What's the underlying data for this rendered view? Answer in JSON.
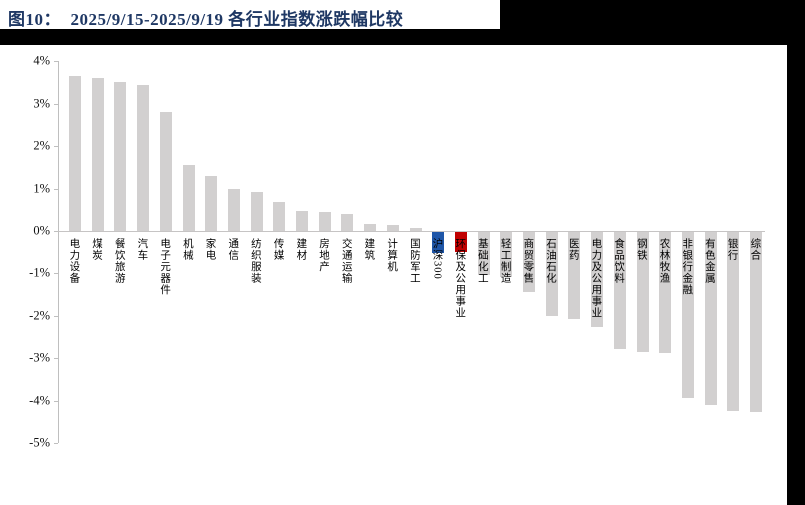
{
  "header": {
    "title": "图10：  2025/9/15-2025/9/19 各行业指数涨跌幅比较",
    "title_color": "#1F3864"
  },
  "chart_data": {
    "type": "bar",
    "title": "2025/9/15-2025/9/19 各行业指数涨跌幅比较",
    "xlabel": "",
    "ylabel": "",
    "y_unit": "%",
    "ylim": [
      -5,
      4
    ],
    "y_ticks": [
      "4%",
      "3%",
      "2%",
      "1%",
      "0%",
      "-1%",
      "-2%",
      "-3%",
      "-4%",
      "-5%"
    ],
    "grid": "none",
    "legend": "none",
    "categories": [
      "电力设备",
      "煤炭",
      "餐饮旅游",
      "汽车",
      "电子元器件",
      "机械",
      "家电",
      "通信",
      "纺织服装",
      "传媒",
      "建材",
      "房地产",
      "交通运输",
      "建筑",
      "计算机",
      "国防军工",
      "沪深300",
      "环保及公用事业",
      "基础化工",
      "轻工制造",
      "商贸零售",
      "石油石化",
      "医药",
      "电力及公用事业",
      "食品饮料",
      "钢铁",
      "农林牧渔",
      "非银行金融",
      "有色金属",
      "银行",
      "综合"
    ],
    "values": [
      3.65,
      3.6,
      3.52,
      3.45,
      2.8,
      1.55,
      1.3,
      1.0,
      0.92,
      0.68,
      0.48,
      0.44,
      0.4,
      0.17,
      0.14,
      0.06,
      -0.5,
      -0.48,
      -1.02,
      -1.07,
      -1.42,
      -1.97,
      -2.05,
      -2.25,
      -2.76,
      -2.84,
      -2.86,
      -3.92,
      -4.08,
      -4.22,
      -4.24
    ],
    "bar_default_color": "#D2D0D0",
    "highlighted_bars": [
      {
        "index": 16,
        "category": "沪深300",
        "color": "#1F56A8"
      },
      {
        "index": 17,
        "category": "环保及公用事业",
        "color": "#C00000"
      }
    ]
  },
  "decor": {
    "band_color": "#000000",
    "axis_color": "#BFBFBF",
    "zero_line_color": "#C6C4C4",
    "tick_label_color": "#111111",
    "category_label_color": "#000000"
  }
}
